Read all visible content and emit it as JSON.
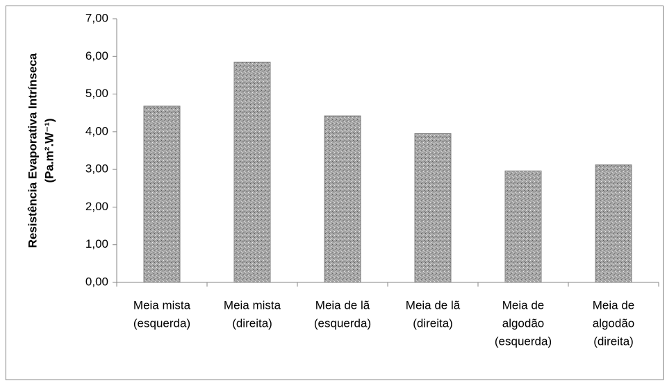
{
  "chart_data": {
    "type": "bar",
    "y_label": [
      "Resistência Evaporativa Intrínseca",
      "(Pa.m².W⁻¹)"
    ],
    "categories": [
      [
        "Meia mista",
        "(esquerda)"
      ],
      [
        "Meia mista",
        "(direita)"
      ],
      [
        "Meia de lã",
        "(esquerda)"
      ],
      [
        "Meia de lã",
        "(direita)"
      ],
      [
        "Meia de",
        "algodão",
        "(esquerda)"
      ],
      [
        "Meia de",
        "algodão",
        "(direita)"
      ]
    ],
    "values": [
      4.68,
      5.85,
      4.42,
      3.95,
      2.96,
      3.12
    ],
    "color": "#a6a6a6",
    "ylim": [
      0,
      7
    ],
    "yticks": [
      {
        "value": 0,
        "label": "0,00"
      },
      {
        "value": 1,
        "label": "1,00"
      },
      {
        "value": 2,
        "label": "2,00"
      },
      {
        "value": 3,
        "label": "3,00"
      },
      {
        "value": 4,
        "label": "4,00"
      },
      {
        "value": 5,
        "label": "5,00"
      },
      {
        "value": 6,
        "label": "6,00"
      },
      {
        "value": 7,
        "label": "7,00"
      }
    ],
    "grid": false
  }
}
